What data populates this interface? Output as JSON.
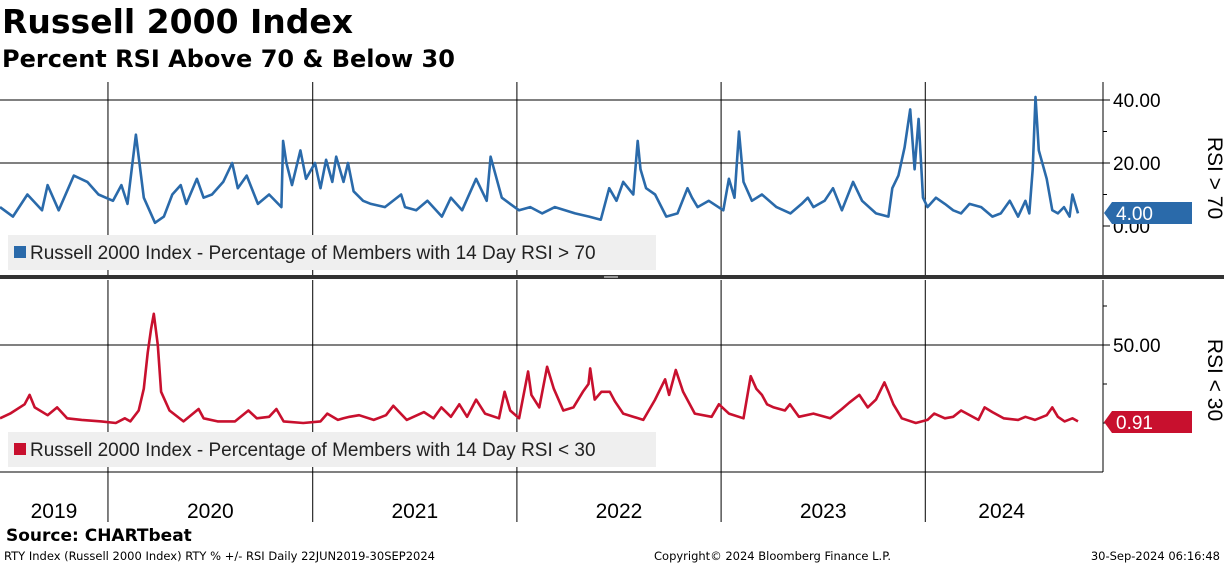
{
  "header": {
    "title": "Russell 2000 Index",
    "subtitle": "Percent RSI Above 70 & Below 30"
  },
  "footer": {
    "source": "Source: CHARTbeat",
    "left": "RTY Index (Russell 2000 Index) RTY % +/- RSI  Daily 22JUN2019-30SEP2024",
    "middle": "Copyright© 2024 Bloomberg Finance L.P.",
    "right": "30-Sep-2024 06:16:48"
  },
  "colors": {
    "top_series": "#2a6aaa",
    "bottom_series": "#c8102e"
  },
  "chart_data": [
    {
      "type": "line",
      "ylabel": "RSI > 70",
      "ylim": [
        0,
        45
      ],
      "yticks": [
        "0.00",
        "20.00",
        "40.00"
      ],
      "x_range": [
        "2019-06-22",
        "2024-09-30"
      ],
      "x_tick_labels": [
        "2019",
        "2020",
        "2021",
        "2022",
        "2023",
        "2024"
      ],
      "last_value_label": "4.00",
      "legend": "Russell 2000 Index - Percentage of Members with 14 Day RSI > 70",
      "series": [
        {
          "x": [
            "2019-06-22",
            "2019-07-15",
            "2019-08-10",
            "2019-09-05",
            "2019-09-15",
            "2019-10-05",
            "2019-11-01",
            "2019-11-25",
            "2019-12-15",
            "2020-01-10",
            "2020-01-25",
            "2020-02-05",
            "2020-02-20",
            "2020-03-05",
            "2020-03-25",
            "2020-04-10",
            "2020-04-25",
            "2020-05-10",
            "2020-05-20",
            "2020-06-08",
            "2020-06-20",
            "2020-07-05",
            "2020-07-25",
            "2020-08-10",
            "2020-08-20",
            "2020-09-05",
            "2020-09-25",
            "2020-10-15",
            "2020-11-06",
            "2020-11-09",
            "2020-11-15",
            "2020-11-25",
            "2020-12-10",
            "2020-12-20",
            "2021-01-05",
            "2021-01-15",
            "2021-01-25",
            "2021-02-05",
            "2021-02-12",
            "2021-02-25",
            "2021-03-05",
            "2021-03-15",
            "2021-04-01",
            "2021-04-15",
            "2021-05-10",
            "2021-06-08",
            "2021-06-15",
            "2021-07-05",
            "2021-07-25",
            "2021-08-20",
            "2021-09-05",
            "2021-09-25",
            "2021-10-20",
            "2021-11-08",
            "2021-11-15",
            "2021-12-05",
            "2021-12-20",
            "2022-01-05",
            "2022-01-25",
            "2022-02-15",
            "2022-03-10",
            "2022-03-28",
            "2022-04-15",
            "2022-05-10",
            "2022-05-31",
            "2022-06-15",
            "2022-06-28",
            "2022-07-10",
            "2022-07-28",
            "2022-08-05",
            "2022-08-10",
            "2022-08-20",
            "2022-09-05",
            "2022-09-25",
            "2022-10-15",
            "2022-11-02",
            "2022-11-10",
            "2022-11-20",
            "2022-12-10",
            "2023-01-05",
            "2023-01-15",
            "2023-01-25",
            "2023-02-02",
            "2023-02-10",
            "2023-02-25",
            "2023-03-15",
            "2023-04-10",
            "2023-05-05",
            "2023-05-25",
            "2023-06-05",
            "2023-06-15",
            "2023-07-05",
            "2023-07-20",
            "2023-08-05",
            "2023-08-25",
            "2023-09-10",
            "2023-10-05",
            "2023-10-27",
            "2023-11-03",
            "2023-11-14",
            "2023-11-25",
            "2023-12-05",
            "2023-12-13",
            "2023-12-20",
            "2023-12-28",
            "2024-01-05",
            "2024-01-20",
            "2024-02-05",
            "2024-02-20",
            "2024-03-05",
            "2024-03-20",
            "2024-04-10",
            "2024-04-30",
            "2024-05-15",
            "2024-05-31",
            "2024-06-15",
            "2024-06-28",
            "2024-07-05",
            "2024-07-11",
            "2024-07-16",
            "2024-07-22",
            "2024-08-05",
            "2024-08-15",
            "2024-08-25",
            "2024-09-05",
            "2024-09-15",
            "2024-09-20",
            "2024-09-30"
          ],
          "values": [
            6,
            3,
            10,
            5,
            13,
            5,
            16,
            14,
            10,
            8,
            13,
            7,
            29,
            9,
            1,
            3,
            10,
            13,
            7,
            15,
            9,
            10,
            14,
            20,
            12,
            16,
            7,
            10,
            6,
            27,
            20,
            13,
            24,
            15,
            20,
            12,
            21,
            14,
            22,
            14,
            20,
            11,
            8,
            7,
            6,
            10,
            6,
            5,
            8,
            3,
            9,
            5,
            15,
            8,
            22,
            9,
            7,
            5,
            6,
            4,
            6,
            5,
            4,
            3,
            2,
            12,
            8,
            14,
            10,
            27,
            18,
            12,
            10,
            3,
            4,
            12,
            9,
            6,
            8,
            5,
            15,
            9,
            30,
            14,
            8,
            10,
            6,
            4,
            7,
            9,
            6,
            8,
            12,
            5,
            14,
            8,
            4,
            3,
            12,
            16,
            25,
            37,
            18,
            34,
            9,
            6,
            9,
            7,
            5,
            4,
            7,
            6,
            3,
            4,
            8,
            3,
            8,
            4,
            18,
            41,
            24,
            15,
            5,
            4,
            6,
            3,
            10,
            4
          ],
          "color": "#2a6aaa"
        }
      ]
    },
    {
      "type": "line",
      "ylabel": "RSI < 30",
      "ylim": [
        0,
        95
      ],
      "yticks": [
        "50.00"
      ],
      "x_range": [
        "2019-06-22",
        "2024-09-30"
      ],
      "x_tick_labels": [
        "2019",
        "2020",
        "2021",
        "2022",
        "2023",
        "2024"
      ],
      "last_value_label": "0.91",
      "legend": "Russell 2000 Index - Percentage of Members with 14 Day RSI < 30",
      "series": [
        {
          "x": [
            "2019-06-22",
            "2019-07-10",
            "2019-08-05",
            "2019-08-14",
            "2019-08-23",
            "2019-09-15",
            "2019-10-02",
            "2019-10-20",
            "2019-11-15",
            "2019-12-20",
            "2020-01-15",
            "2020-01-31",
            "2020-02-10",
            "2020-02-25",
            "2020-03-05",
            "2020-03-12",
            "2020-03-18",
            "2020-03-23",
            "2020-03-30",
            "2020-04-05",
            "2020-04-20",
            "2020-05-15",
            "2020-06-11",
            "2020-06-20",
            "2020-07-15",
            "2020-08-15",
            "2020-09-08",
            "2020-09-23",
            "2020-10-15",
            "2020-10-28",
            "2020-11-10",
            "2020-12-15",
            "2021-01-15",
            "2021-01-27",
            "2021-02-15",
            "2021-02-25",
            "2021-03-08",
            "2021-03-25",
            "2021-04-20",
            "2021-05-12",
            "2021-05-25",
            "2021-06-18",
            "2021-07-19",
            "2021-08-05",
            "2021-08-19",
            "2021-09-05",
            "2021-09-20",
            "2021-10-04",
            "2021-10-20",
            "2021-11-05",
            "2021-11-30",
            "2021-12-10",
            "2021-12-20",
            "2022-01-05",
            "2022-01-21",
            "2022-01-27",
            "2022-02-10",
            "2022-02-24",
            "2022-03-08",
            "2022-03-25",
            "2022-04-12",
            "2022-04-29",
            "2022-05-09",
            "2022-05-12",
            "2022-05-20",
            "2022-06-01",
            "2022-06-16",
            "2022-06-25",
            "2022-07-10",
            "2022-08-15",
            "2022-09-05",
            "2022-09-23",
            "2022-09-30",
            "2022-10-12",
            "2022-10-25",
            "2022-11-15",
            "2022-12-15",
            "2022-12-28",
            "2023-01-15",
            "2023-02-10",
            "2023-02-23",
            "2023-03-05",
            "2023-03-15",
            "2023-03-24",
            "2023-04-05",
            "2023-04-25",
            "2023-05-04",
            "2023-05-20",
            "2023-06-15",
            "2023-07-15",
            "2023-08-05",
            "2023-08-18",
            "2023-09-05",
            "2023-09-20",
            "2023-10-05",
            "2023-10-20",
            "2023-10-27",
            "2023-11-05",
            "2023-11-20",
            "2023-12-15",
            "2024-01-05",
            "2024-01-17",
            "2024-02-05",
            "2024-02-20",
            "2024-03-05",
            "2024-04-05",
            "2024-04-16",
            "2024-04-30",
            "2024-05-20",
            "2024-06-15",
            "2024-06-28",
            "2024-07-15",
            "2024-08-05",
            "2024-08-15",
            "2024-08-25",
            "2024-09-06",
            "2024-09-20",
            "2024-09-30"
          ],
          "values": [
            3,
            6,
            12,
            18,
            10,
            5,
            10,
            3,
            2,
            1,
            0,
            3,
            1,
            8,
            22,
            45,
            60,
            70,
            50,
            20,
            8,
            1,
            9,
            3,
            1,
            1,
            8,
            3,
            4,
            9,
            1,
            0,
            1,
            6,
            2,
            3,
            4,
            5,
            2,
            5,
            11,
            2,
            7,
            3,
            10,
            4,
            12,
            4,
            15,
            6,
            3,
            20,
            8,
            3,
            33,
            18,
            10,
            36,
            22,
            8,
            10,
            20,
            25,
            35,
            15,
            20,
            20,
            14,
            6,
            2,
            15,
            28,
            18,
            34,
            20,
            6,
            4,
            12,
            6,
            3,
            30,
            22,
            18,
            12,
            10,
            8,
            12,
            4,
            6,
            3,
            9,
            13,
            18,
            10,
            15,
            26,
            20,
            12,
            3,
            0,
            2,
            6,
            3,
            4,
            8,
            2,
            10,
            7,
            3,
            2,
            4,
            2,
            5,
            10,
            4,
            1,
            3,
            1
          ],
          "color": "#c8102e"
        }
      ]
    }
  ]
}
